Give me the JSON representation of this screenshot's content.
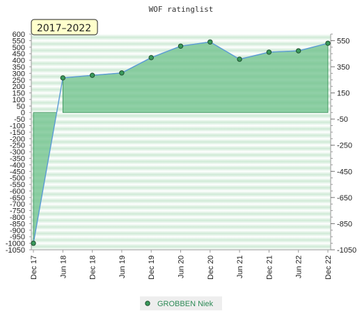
{
  "chart_data": {
    "type": "area",
    "title": "WOF ratinglist",
    "badge": "2017–2022",
    "categories": [
      "Dec 17",
      "Jun 18",
      "Dec 18",
      "Jun 19",
      "Dec 19",
      "Jun 20",
      "Dec 20",
      "Jun 21",
      "Dec 21",
      "Jun 22",
      "Dec 22"
    ],
    "series": [
      {
        "name": "GROBBEN Niek",
        "values": [
          -1000,
          265,
          285,
          303,
          420,
          508,
          540,
          408,
          462,
          472,
          530
        ]
      }
    ],
    "ylim": [
      -1050,
      600
    ],
    "y_ticks": [
      600,
      550,
      500,
      450,
      400,
      350,
      300,
      250,
      200,
      150,
      100,
      50,
      0,
      -50,
      -100,
      -150,
      -200,
      -250,
      -300,
      -350,
      -400,
      -450,
      -500,
      -550,
      -600,
      -650,
      -700,
      -750,
      -800,
      -850,
      -900,
      -950,
      -1000,
      -1050
    ],
    "y_ticks_right": [
      550,
      350,
      150,
      -50,
      -250,
      -450,
      -650,
      -850,
      -1050
    ],
    "grid": true,
    "legend_position": "bottom-center",
    "colors": {
      "line": "#5b9bd5",
      "marker_fill": "#3a9a5c",
      "marker_stroke": "#1f4f2e",
      "fill": "#6cc08a",
      "band_dark": "#d3ecd9",
      "band_light": "#ffffff",
      "badge_bg": "#ffffcc",
      "legend_text": "#2e8b57"
    }
  }
}
